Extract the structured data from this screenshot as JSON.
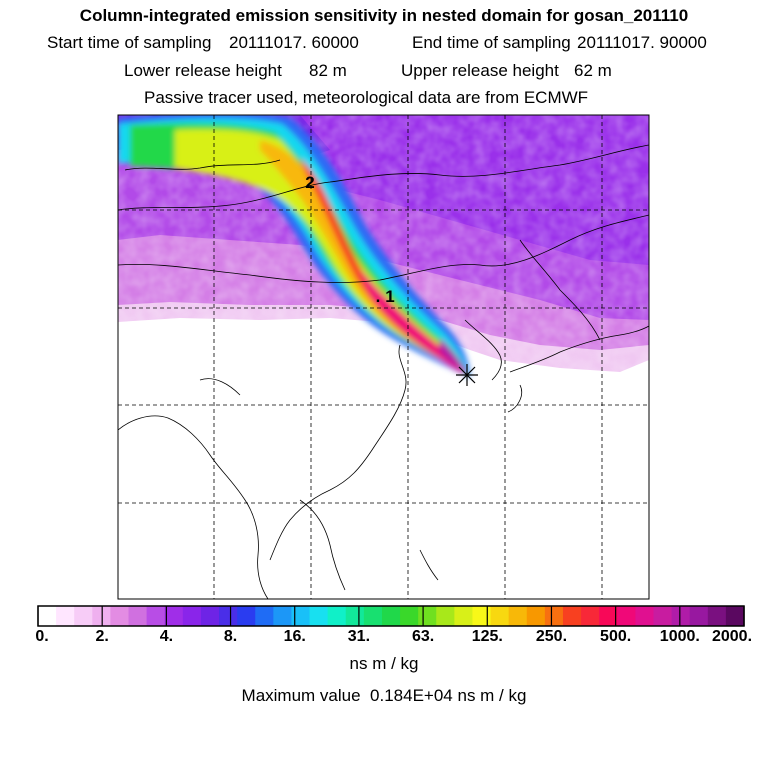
{
  "header": {
    "title": "Column-integrated emission sensitivity in nested domain for gosan_201110",
    "start_label": "Start time of sampling",
    "start_value": "20111017. 60000",
    "end_label": "End time of sampling",
    "end_value": "20111017. 90000",
    "lower_label": "Lower release height",
    "lower_value": "82 m",
    "upper_label": "Upper release height",
    "upper_value": "62 m",
    "note": "Passive tracer used, meteorological data are from ECMWF"
  },
  "map": {
    "markers": [
      {
        "label": "1",
        "lon": 121.2,
        "lat": 42.3
      },
      {
        "label": "2",
        "lon": 111.5,
        "lat": 48.2
      }
    ],
    "receptor": {
      "name": "gosan",
      "lon": 126.2,
      "lat": 33.3
    },
    "lon_range": [
      95,
      150
    ],
    "lat_range": [
      10,
      57
    ],
    "grid_lons": [
      105,
      115,
      125,
      135,
      145
    ],
    "grid_lats": [
      20,
      30,
      40,
      50
    ]
  },
  "colorbar": {
    "tick_labels": [
      "0.",
      "2.",
      "4.",
      "8.",
      "16.",
      "31.",
      "63.",
      "125.",
      "250.",
      "500.",
      "1000.",
      "2000."
    ],
    "colors": [
      "#ffffff",
      "#ffe6ff",
      "#f7ccf7",
      "#efb0ef",
      "#e38ce3",
      "#d070e0",
      "#b84de6",
      "#a02ee8",
      "#8a25ea",
      "#6e24e6",
      "#4a2ee8",
      "#2a3cf0",
      "#1f6cf5",
      "#1c97f7",
      "#19c0f8",
      "#18e0f0",
      "#10f0c8",
      "#12e89a",
      "#18e070",
      "#20d84a",
      "#3ad82a",
      "#6fe020",
      "#a8e81a",
      "#d8f018",
      "#f8f818",
      "#f8d810",
      "#f8b808",
      "#f89800",
      "#f87010",
      "#f84020",
      "#f82838",
      "#f80858",
      "#f00878",
      "#e01090",
      "#c81ca0",
      "#b01ca8",
      "#9818a0",
      "#7a1080",
      "#5a0860"
    ],
    "unit": "ns m / kg"
  },
  "footer": {
    "max_label": "Maximum value",
    "max_value": "0.184E+04",
    "max_unit": "ns m / kg"
  }
}
